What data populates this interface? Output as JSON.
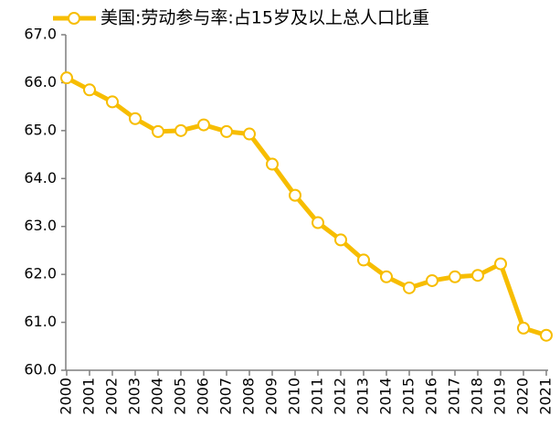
{
  "chart_data": {
    "type": "line",
    "categories": [
      "2000",
      "2001",
      "2002",
      "2003",
      "2004",
      "2005",
      "2006",
      "2007",
      "2008",
      "2009",
      "2010",
      "2011",
      "2012",
      "2013",
      "2014",
      "2015",
      "2016",
      "2017",
      "2018",
      "2019",
      "2020",
      "2021"
    ],
    "series": [
      {
        "name": "美国:劳动参与率:占15岁及以上总人口比重",
        "color": "#f7bd00",
        "values": [
          66.1,
          65.85,
          65.6,
          65.25,
          64.98,
          65.0,
          65.12,
          64.98,
          64.93,
          64.3,
          63.65,
          63.08,
          62.72,
          62.3,
          61.95,
          61.72,
          61.87,
          61.95,
          61.98,
          62.22,
          60.88,
          60.73
        ]
      }
    ],
    "ylim": [
      60,
      67
    ],
    "yticks": [
      {
        "value": 60,
        "label": "60.0"
      },
      {
        "value": 61,
        "label": "61.0"
      },
      {
        "value": 62,
        "label": "62.0"
      },
      {
        "value": 63,
        "label": "63.0"
      },
      {
        "value": 64,
        "label": "64.0"
      },
      {
        "value": 65,
        "label": "65.0"
      },
      {
        "value": 66,
        "label": "66.0"
      },
      {
        "value": 67,
        "label": "67.0"
      }
    ],
    "legend": "top"
  }
}
